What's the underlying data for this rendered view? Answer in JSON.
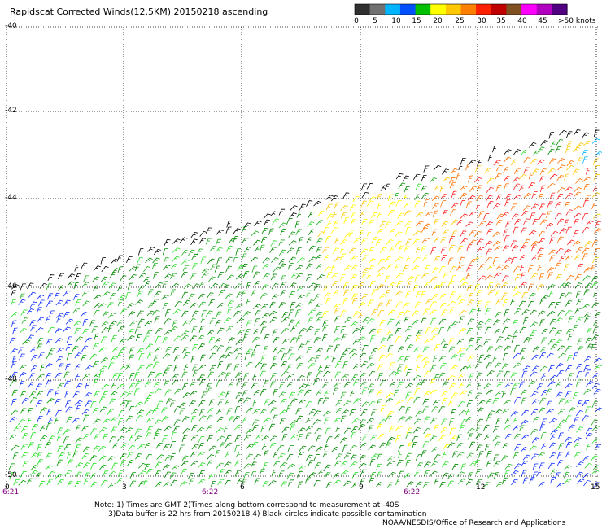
{
  "title": "Rapidscat Corrected Winds(12.5KM) 20150218 ascending",
  "legend": {
    "tick_labels": [
      "0",
      "5",
      "10",
      "15",
      "20",
      "25",
      "30",
      "35",
      "40",
      "45",
      ">50 knots"
    ],
    "colors": [
      "#303030",
      "#707070",
      "#00b4ff",
      "#0050ff",
      "#00c000",
      "#ffff00",
      "#ffc800",
      "#ff8000",
      "#ff2000",
      "#c00000",
      "#805020",
      "#ff00ff",
      "#b000c0",
      "#500080"
    ]
  },
  "latitude_labels": [
    "-40",
    "-42",
    "-44",
    "-46",
    "-48",
    "-50"
  ],
  "longitude_labels": [
    "0",
    "3",
    "6",
    "9",
    "12",
    "15"
  ],
  "time_labels": [
    "6:21",
    "6:22",
    "6:22"
  ],
  "notes": {
    "line1": "Note: 1) Times are GMT 2)Times along bottom correspond to measurement at -40S",
    "line2": "3)Data buffer is 22 hrs from 20150218 4) Black circles indicate possible contamination"
  },
  "credit": "NOAA/NESDIS/Office of Research and Applications"
}
